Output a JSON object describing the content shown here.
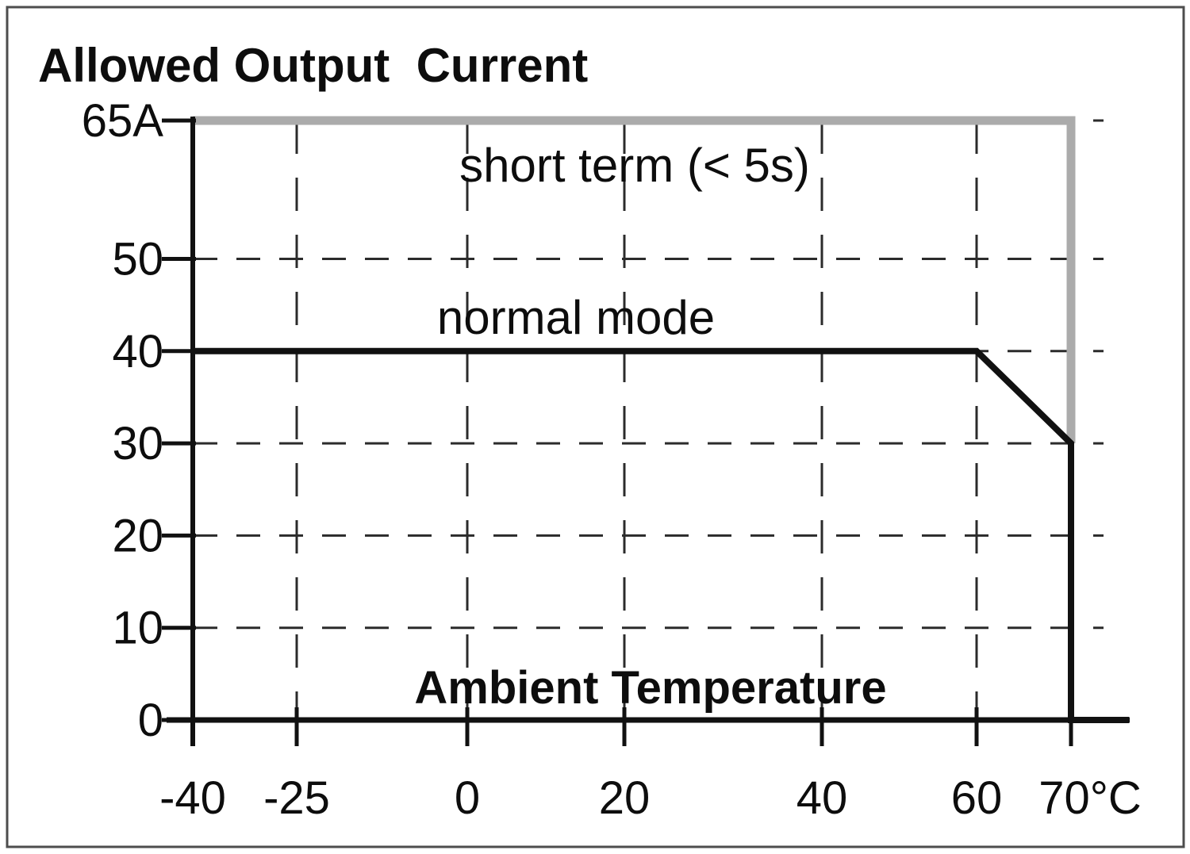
{
  "figure": {
    "background": "#ffffff",
    "border_color": "#4d4d4d"
  },
  "chart_data": {
    "type": "line",
    "title": "Allowed Output  Current",
    "xlabel": "Ambient Temperature",
    "ylabel": "",
    "x_unit": "°C",
    "y_unit": "A",
    "xlim": [
      -40,
      76
    ],
    "ylim": [
      0,
      65
    ],
    "grid": {
      "style": "dashed",
      "x_values": [
        -25,
        0,
        20,
        40,
        60
      ],
      "y_values": [
        10,
        20,
        30,
        40,
        50,
        65
      ]
    },
    "x_ticks": [
      -40,
      -25,
      0,
      20,
      40,
      60,
      70
    ],
    "x_tick_labels": [
      "-40",
      "-25",
      "0",
      "20",
      "40",
      "60",
      "70°C"
    ],
    "y_ticks": [
      0,
      10,
      20,
      30,
      40,
      50,
      65
    ],
    "y_tick_labels": [
      "0",
      "10",
      "20",
      "30",
      "40",
      "50",
      "65A"
    ],
    "series": [
      {
        "name": "short term (< 5s)",
        "color": "#ababab",
        "points": [
          [
            -40,
            65
          ],
          [
            70,
            65
          ],
          [
            70,
            30
          ]
        ]
      },
      {
        "name": "normal mode",
        "color": "#111111",
        "points": [
          [
            -40,
            40
          ],
          [
            60,
            40
          ],
          [
            70,
            30
          ],
          [
            70,
            0
          ],
          [
            76,
            0
          ]
        ]
      }
    ]
  }
}
